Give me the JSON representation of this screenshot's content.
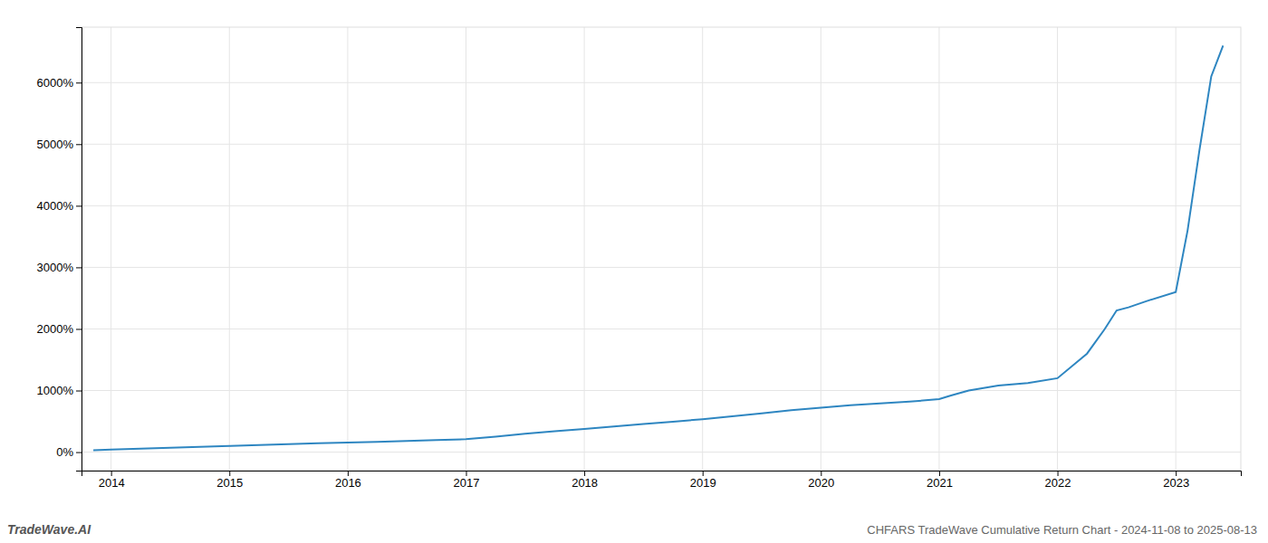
{
  "chart_data": {
    "type": "line",
    "title": "CHFARS TradeWave Cumulative Return Chart - 2024-11-08 to 2025-08-13",
    "annotations": [
      "TradeWave.AI"
    ],
    "x": [
      2013.85,
      2014.0,
      2014.25,
      2014.5,
      2014.75,
      2015.0,
      2015.25,
      2015.5,
      2015.75,
      2016.0,
      2016.25,
      2016.5,
      2016.75,
      2017.0,
      2017.25,
      2017.5,
      2017.75,
      2018.0,
      2018.25,
      2018.5,
      2018.75,
      2019.0,
      2019.25,
      2019.5,
      2019.75,
      2020.0,
      2020.25,
      2020.5,
      2020.75,
      2021.0,
      2021.1,
      2021.25,
      2021.5,
      2021.75,
      2022.0,
      2022.25,
      2022.4,
      2022.5,
      2022.6,
      2022.75,
      2023.0,
      2023.1,
      2023.2,
      2023.3,
      2023.4
    ],
    "values": [
      30,
      40,
      55,
      70,
      85,
      100,
      115,
      130,
      145,
      155,
      165,
      180,
      195,
      210,
      250,
      300,
      340,
      375,
      415,
      455,
      495,
      535,
      580,
      630,
      680,
      720,
      760,
      790,
      820,
      860,
      920,
      1000,
      1080,
      1120,
      1200,
      1600,
      2000,
      2300,
      2350,
      2450,
      2600,
      3600,
      4900,
      6100,
      6600
    ],
    "color": "#2e86c1",
    "xlim": [
      2013.75,
      2023.55
    ],
    "ylim": [
      -300,
      6900
    ],
    "xticks": [
      2014,
      2015,
      2016,
      2017,
      2018,
      2019,
      2020,
      2021,
      2022,
      2023
    ],
    "yticks": [
      {
        "value": 0,
        "label": "0%"
      },
      {
        "value": 1000,
        "label": "1000%"
      },
      {
        "value": 2000,
        "label": "2000%"
      },
      {
        "value": 3000,
        "label": "3000%"
      },
      {
        "value": 4000,
        "label": "4000%"
      },
      {
        "value": 5000,
        "label": "5000%"
      },
      {
        "value": 6000,
        "label": "6000%"
      }
    ],
    "grid": true
  }
}
